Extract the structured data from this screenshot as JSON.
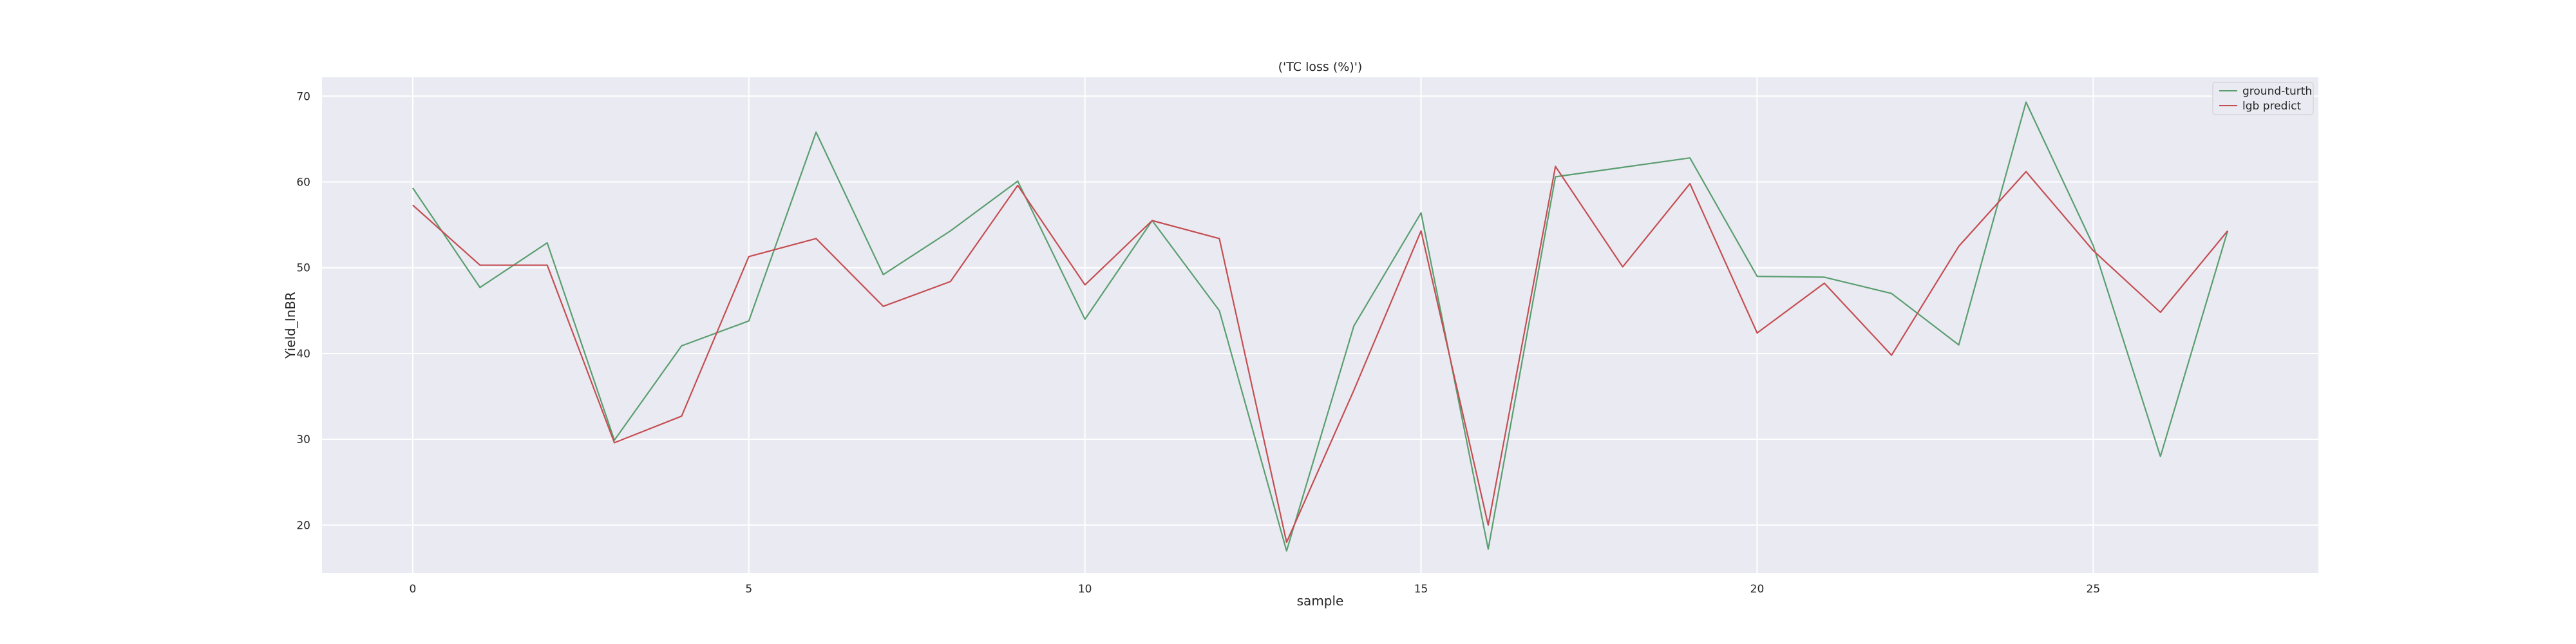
{
  "chart_data": {
    "type": "line",
    "title": "('TC loss (%)')",
    "xlabel": "sample",
    "ylabel": "Yield_InBR",
    "xlim": [
      -1.35,
      28.35
    ],
    "ylim": [
      14.4,
      72.2
    ],
    "xticks": [
      0,
      5,
      10,
      15,
      20,
      25
    ],
    "yticks": [
      20,
      30,
      40,
      50,
      60,
      70
    ],
    "grid": true,
    "legend_position": "top-right",
    "x": [
      0,
      1,
      2,
      3,
      4,
      5,
      6,
      7,
      8,
      9,
      10,
      11,
      12,
      13,
      14,
      15,
      16,
      17,
      18,
      19,
      20,
      21,
      22,
      23,
      24,
      25,
      26,
      27
    ],
    "series": [
      {
        "name": "ground-turth",
        "color": "#5a9e6f",
        "values": [
          59.3,
          47.7,
          52.9,
          29.9,
          40.9,
          43.8,
          65.8,
          49.2,
          54.3,
          60.1,
          44.0,
          55.5,
          45.0,
          17.0,
          43.2,
          56.4,
          17.2,
          60.6,
          61.7,
          62.8,
          49.0,
          48.9,
          47.0,
          41.0,
          69.3,
          52.6,
          28.0,
          54.3
        ]
      },
      {
        "name": "lgb predict",
        "color": "#c44e52",
        "values": [
          57.3,
          50.3,
          50.3,
          29.6,
          32.7,
          51.3,
          53.4,
          45.5,
          48.4,
          59.6,
          48.0,
          55.5,
          53.4,
          18.0,
          35.7,
          54.3,
          20.0,
          61.8,
          50.1,
          59.8,
          42.4,
          48.2,
          39.8,
          52.5,
          61.2,
          52.0,
          44.8,
          54.3
        ]
      }
    ]
  }
}
